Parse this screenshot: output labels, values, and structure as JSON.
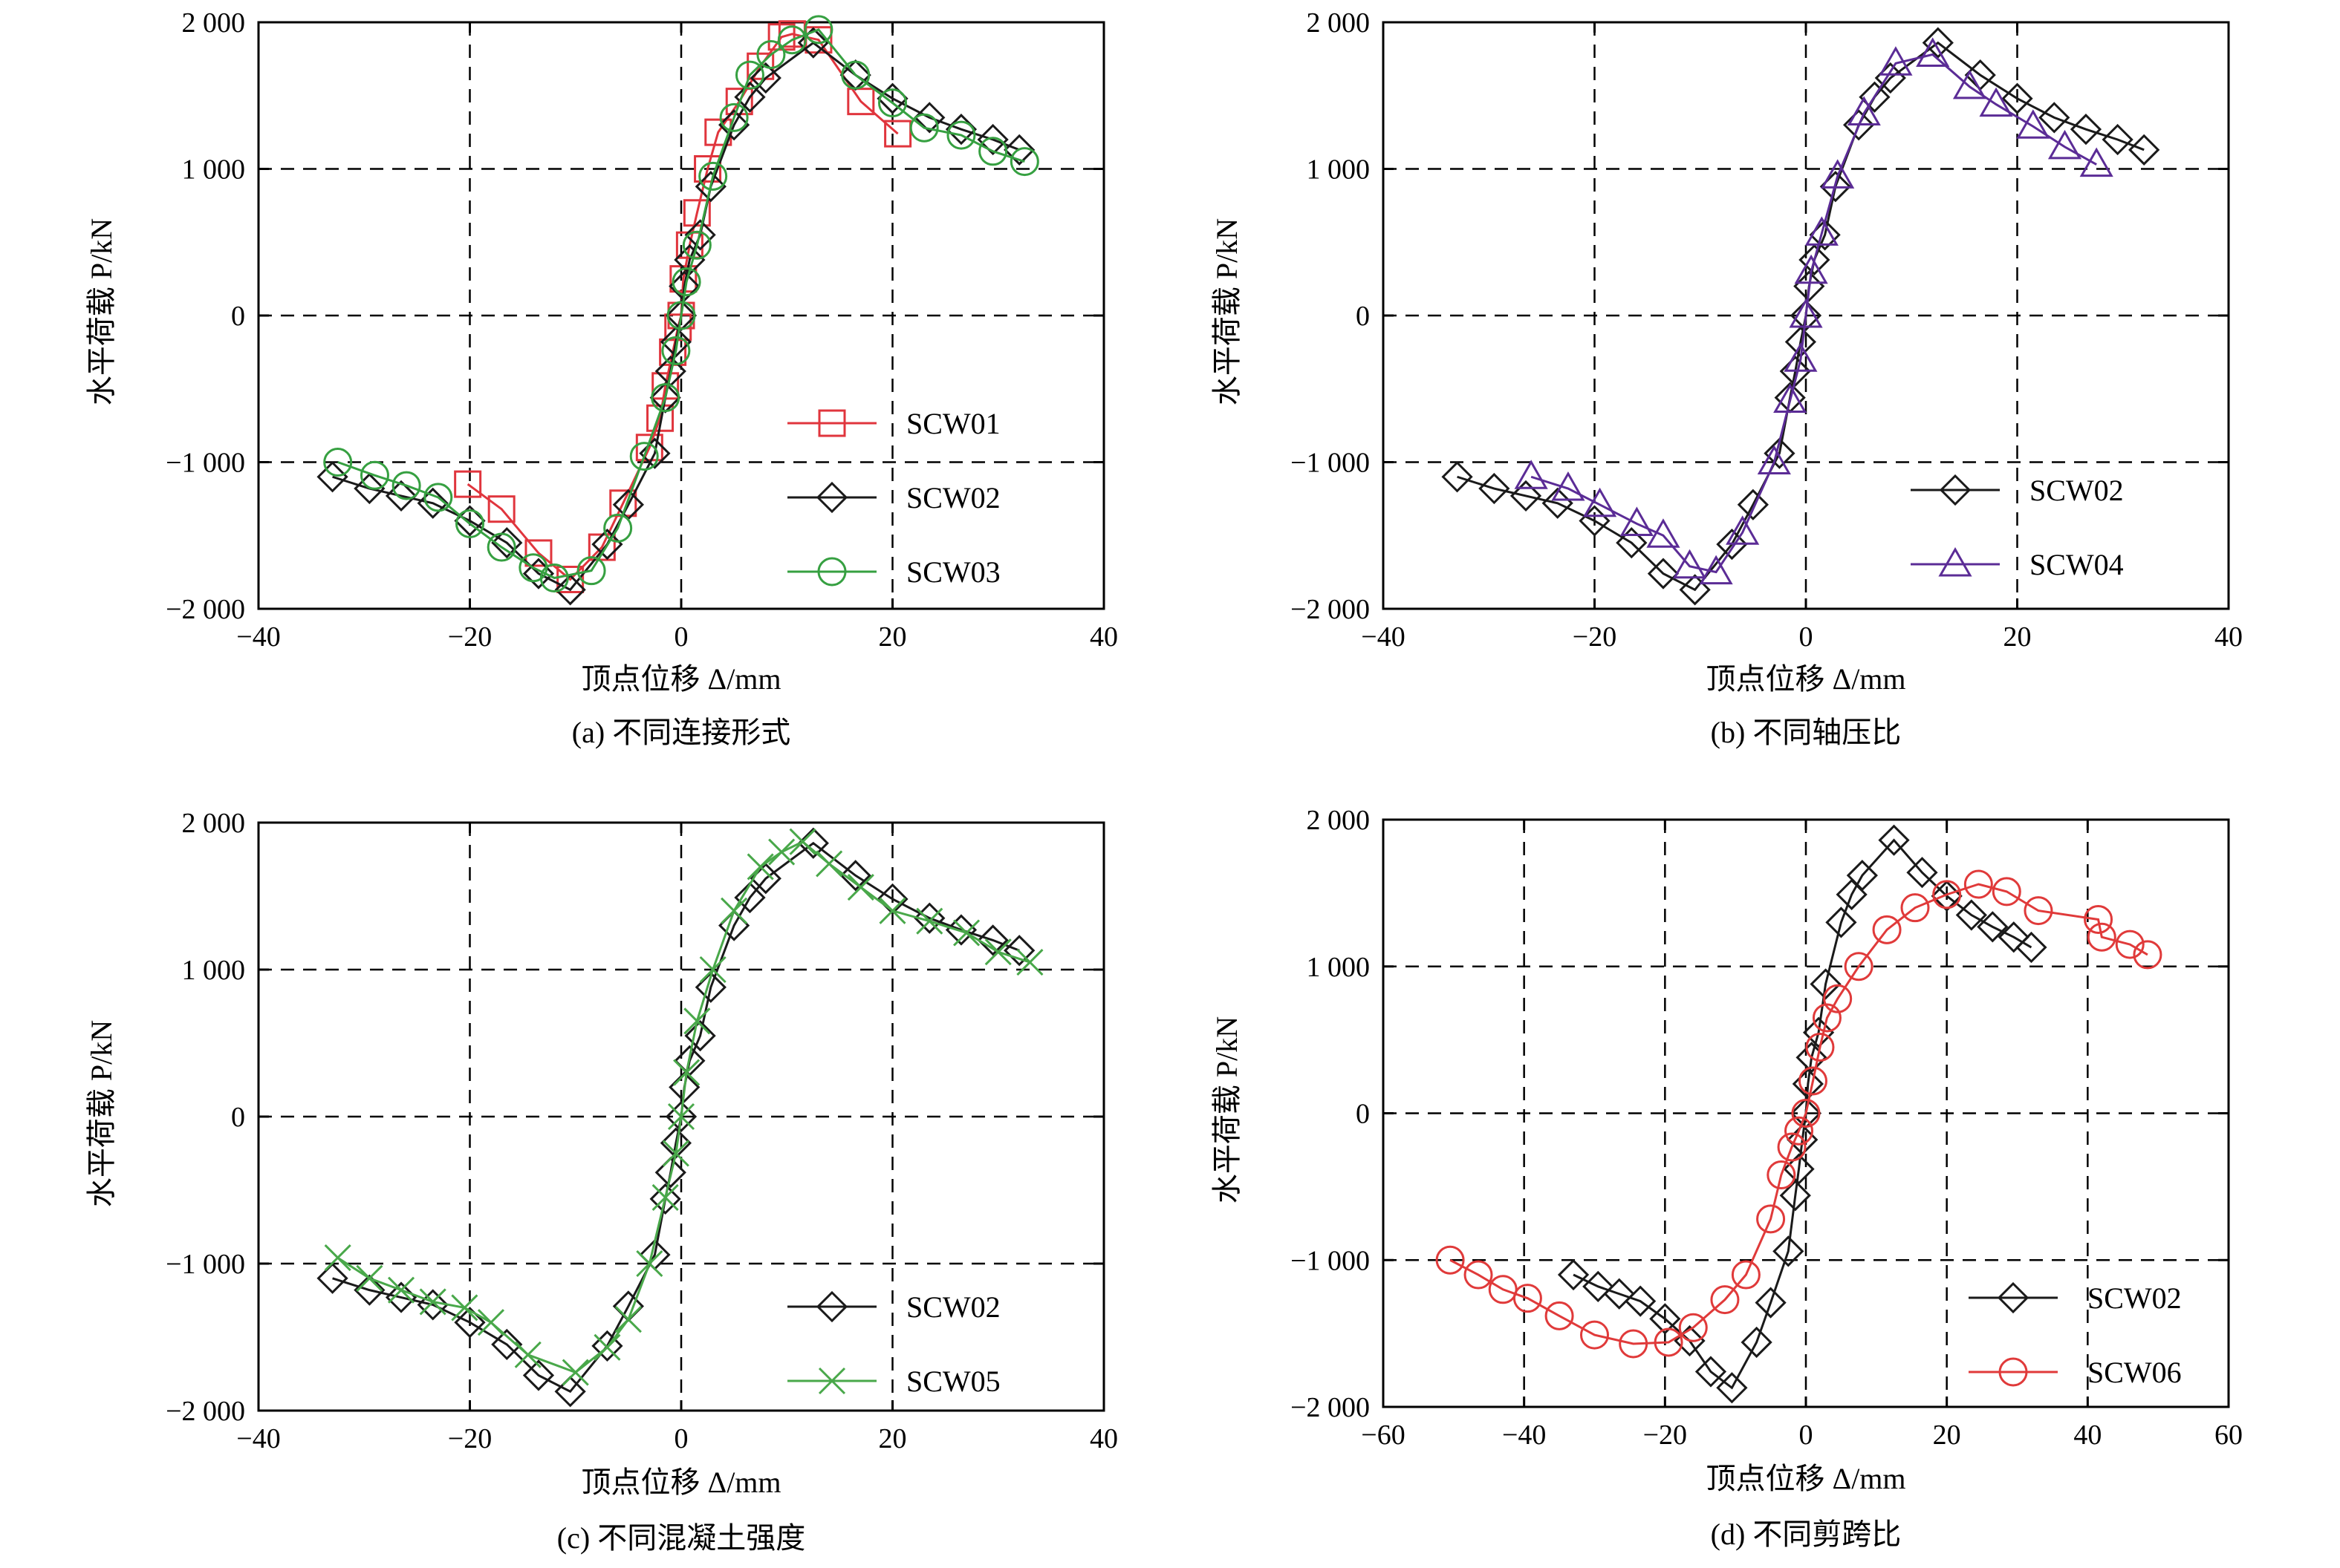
{
  "chart_data": [
    {
      "type": "line",
      "caption": "(a) 不同连接形式",
      "xlabel": "顶点位移 Δ/mm",
      "ylabel": "水平荷载 P/kN",
      "xlim": [
        -40,
        40
      ],
      "ylim": [
        -2000,
        2000
      ],
      "xticks": [
        -40,
        -20,
        0,
        20,
        40
      ],
      "yticks": [
        -2000,
        -1000,
        0,
        1000,
        2000
      ],
      "xtick_labels": [
        "−40",
        "−20",
        "0",
        "20",
        "40"
      ],
      "ytick_labels": [
        "−2 000",
        "−1 000",
        "0",
        "1 000",
        "2 000"
      ],
      "grid": "dashed",
      "legend_position": "bottom-right",
      "series": [
        {
          "name": "SCW01",
          "color": "#e0353d",
          "marker": "square",
          "x": [
            -20.2,
            -17,
            -13.5,
            -10.5,
            -7.5,
            -5.5,
            -3,
            -2,
            -1.5,
            -0.8,
            -0.3,
            0,
            0.2,
            0.8,
            1.5,
            2.5,
            3.5,
            5.5,
            7.5,
            9.5,
            10.5,
            13,
            17,
            20.5
          ],
          "y": [
            -1150,
            -1320,
            -1620,
            -1800,
            -1580,
            -1280,
            -900,
            -700,
            -480,
            -250,
            -80,
            0,
            250,
            480,
            700,
            1000,
            1250,
            1460,
            1700,
            1900,
            1920,
            1880,
            1460,
            1240
          ]
        },
        {
          "name": "SCW02",
          "color": "#1a1a1a",
          "marker": "diamond",
          "x": [
            -33,
            -29.5,
            -26.5,
            -23.5,
            -20,
            -16.5,
            -13.5,
            -10.5,
            -7,
            -5,
            -2.5,
            -1.5,
            -1,
            -0.5,
            0,
            0.3,
            0.8,
            1.8,
            2.8,
            5,
            6.5,
            8,
            12.5,
            16.5,
            20,
            23.5,
            26.5,
            29.5,
            32
          ],
          "y": [
            -1100,
            -1180,
            -1230,
            -1280,
            -1400,
            -1550,
            -1760,
            -1870,
            -1560,
            -1290,
            -940,
            -560,
            -380,
            -180,
            0,
            200,
            380,
            550,
            880,
            1300,
            1490,
            1620,
            1860,
            1640,
            1480,
            1350,
            1270,
            1200,
            1130
          ]
        },
        {
          "name": "SCW03",
          "color": "#36a041",
          "marker": "circle",
          "x": [
            -32.5,
            -29,
            -26,
            -23,
            -20,
            -17,
            -14,
            -12,
            -8.5,
            -6,
            -3.5,
            -1.5,
            -0.5,
            0,
            0.5,
            1.5,
            3,
            5,
            6.5,
            8.5,
            10.5,
            13,
            16.5,
            20,
            23,
            26.5,
            29.5,
            32.5
          ],
          "y": [
            -1000,
            -1090,
            -1160,
            -1240,
            -1420,
            -1580,
            -1720,
            -1790,
            -1740,
            -1450,
            -960,
            -560,
            -240,
            0,
            230,
            480,
            950,
            1350,
            1640,
            1780,
            1880,
            1950,
            1640,
            1450,
            1280,
            1230,
            1120,
            1050
          ]
        }
      ]
    },
    {
      "type": "line",
      "caption": "(b) 不同轴压比",
      "xlabel": "顶点位移 Δ/mm",
      "ylabel": "水平荷载 P/kN",
      "xlim": [
        -40,
        40
      ],
      "ylim": [
        -2000,
        2000
      ],
      "xticks": [
        -40,
        -20,
        0,
        20,
        40
      ],
      "yticks": [
        -2000,
        -1000,
        0,
        1000,
        2000
      ],
      "xtick_labels": [
        "−40",
        "−20",
        "0",
        "20",
        "40"
      ],
      "ytick_labels": [
        "−2 000",
        "−1 000",
        "0",
        "1 000",
        "2 000"
      ],
      "grid": "dashed",
      "legend_position": "bottom-right",
      "series": [
        {
          "name": "SCW02",
          "color": "#1a1a1a",
          "marker": "diamond",
          "x": [
            -33,
            -29.5,
            -26.5,
            -23.5,
            -20,
            -16.5,
            -13.5,
            -10.5,
            -7,
            -5,
            -2.5,
            -1.5,
            -1,
            -0.5,
            0,
            0.3,
            0.8,
            1.8,
            2.8,
            5,
            6.5,
            8,
            12.5,
            16.5,
            20,
            23.5,
            26.5,
            29.5,
            32
          ],
          "y": [
            -1100,
            -1180,
            -1230,
            -1280,
            -1400,
            -1550,
            -1760,
            -1870,
            -1560,
            -1290,
            -940,
            -560,
            -380,
            -180,
            0,
            200,
            380,
            550,
            880,
            1300,
            1490,
            1620,
            1860,
            1640,
            1480,
            1350,
            1270,
            1200,
            1130
          ]
        },
        {
          "name": "SCW04",
          "color": "#5b2c96",
          "marker": "triangle",
          "x": [
            -26,
            -22.5,
            -19.5,
            -16,
            -13.5,
            -11,
            -8.5,
            -6,
            -3,
            -1.5,
            -0.5,
            0,
            0.5,
            1.5,
            3,
            5.5,
            8.5,
            12,
            15.5,
            18,
            21.5,
            24.5,
            27.5
          ],
          "y": [
            -1100,
            -1180,
            -1290,
            -1420,
            -1500,
            -1710,
            -1750,
            -1480,
            -1000,
            -580,
            -300,
            0,
            300,
            560,
            950,
            1380,
            1720,
            1780,
            1560,
            1440,
            1290,
            1150,
            1030
          ]
        }
      ]
    },
    {
      "type": "line",
      "caption": "(c) 不同混凝土强度",
      "xlabel": "顶点位移 Δ/mm",
      "ylabel": "水平荷载 P/kN",
      "xlim": [
        -40,
        40
      ],
      "ylim": [
        -2000,
        2000
      ],
      "xticks": [
        -40,
        -20,
        0,
        20,
        40
      ],
      "yticks": [
        -2000,
        -1000,
        0,
        1000,
        2000
      ],
      "xtick_labels": [
        "−40",
        "−20",
        "0",
        "20",
        "40"
      ],
      "ytick_labels": [
        "−2 000",
        "−1 000",
        "0",
        "1 000",
        "2 000"
      ],
      "grid": "dashed",
      "legend_position": "bottom-right",
      "series": [
        {
          "name": "SCW02",
          "color": "#1a1a1a",
          "marker": "diamond",
          "x": [
            -33,
            -29.5,
            -26.5,
            -23.5,
            -20,
            -16.5,
            -13.5,
            -10.5,
            -7,
            -5,
            -2.5,
            -1.5,
            -1,
            -0.5,
            0,
            0.3,
            0.8,
            1.8,
            2.8,
            5,
            6.5,
            8,
            12.5,
            16.5,
            20,
            23.5,
            26.5,
            29.5,
            32
          ],
          "y": [
            -1100,
            -1180,
            -1230,
            -1280,
            -1400,
            -1550,
            -1760,
            -1870,
            -1560,
            -1290,
            -940,
            -560,
            -380,
            -180,
            0,
            200,
            380,
            550,
            880,
            1300,
            1490,
            1620,
            1860,
            1640,
            1480,
            1350,
            1270,
            1200,
            1130
          ]
        },
        {
          "name": "SCW05",
          "color": "#49a84a",
          "marker": "x",
          "x": [
            -32.5,
            -29.5,
            -26.5,
            -23.5,
            -20.5,
            -18,
            -14.5,
            -10,
            -7,
            -5,
            -3,
            -1.5,
            -0.5,
            0,
            0.5,
            1.5,
            3,
            5,
            7.5,
            9.5,
            11.5,
            14,
            17,
            20,
            23.5,
            27,
            30,
            33
          ],
          "y": [
            -960,
            -1100,
            -1180,
            -1260,
            -1300,
            -1400,
            -1620,
            -1740,
            -1570,
            -1380,
            -1000,
            -550,
            -250,
            0,
            300,
            650,
            1000,
            1400,
            1700,
            1800,
            1870,
            1720,
            1560,
            1400,
            1330,
            1250,
            1120,
            1050
          ]
        }
      ]
    },
    {
      "type": "line",
      "caption": "(d) 不同剪跨比",
      "xlabel": "顶点位移 Δ/mm",
      "ylabel": "水平荷载 P/kN",
      "xlim": [
        -60,
        60
      ],
      "ylim": [
        -2000,
        2000
      ],
      "xticks": [
        -60,
        -40,
        -20,
        0,
        20,
        40,
        60
      ],
      "yticks": [
        -2000,
        -1000,
        0,
        1000,
        2000
      ],
      "xtick_labels": [
        "−60",
        "−40",
        "−20",
        "0",
        "20",
        "40",
        "60"
      ],
      "ytick_labels": [
        "−2 000",
        "−1 000",
        "0",
        "1 000",
        "2 000"
      ],
      "grid": "dashed",
      "legend_position": "bottom-right",
      "series": [
        {
          "name": "SCW02",
          "color": "#1a1a1a",
          "marker": "diamond",
          "x": [
            -33,
            -29.5,
            -26.5,
            -23.5,
            -20,
            -16.5,
            -13.5,
            -10.5,
            -7,
            -5,
            -2.5,
            -1.5,
            -1,
            -0.5,
            0,
            0.3,
            0.8,
            1.8,
            2.8,
            5,
            6.5,
            8,
            12.5,
            16.5,
            20,
            23.5,
            26.5,
            29.5,
            32
          ],
          "y": [
            -1100,
            -1180,
            -1230,
            -1280,
            -1400,
            -1550,
            -1760,
            -1870,
            -1560,
            -1290,
            -940,
            -560,
            -380,
            -180,
            0,
            200,
            380,
            550,
            880,
            1300,
            1490,
            1620,
            1860,
            1640,
            1480,
            1350,
            1270,
            1200,
            1130
          ]
        },
        {
          "name": "SCW06",
          "color": "#e03a3a",
          "marker": "circle",
          "x": [
            -50.5,
            -46.5,
            -43,
            -39.5,
            -35,
            -30,
            -24.5,
            -19.5,
            -16,
            -11.5,
            -8.5,
            -5,
            -3.5,
            -2,
            -1,
            0,
            1,
            2,
            3,
            4.5,
            7.5,
            11.5,
            15.5,
            20,
            24.5,
            28.5,
            33,
            41.5,
            42,
            46,
            48.5
          ],
          "y": [
            -1000,
            -1100,
            -1200,
            -1260,
            -1380,
            -1510,
            -1570,
            -1560,
            -1460,
            -1270,
            -1100,
            -720,
            -420,
            -230,
            -120,
            0,
            220,
            450,
            650,
            780,
            1000,
            1250,
            1400,
            1490,
            1560,
            1510,
            1380,
            1320,
            1200,
            1150,
            1080
          ]
        }
      ]
    }
  ]
}
